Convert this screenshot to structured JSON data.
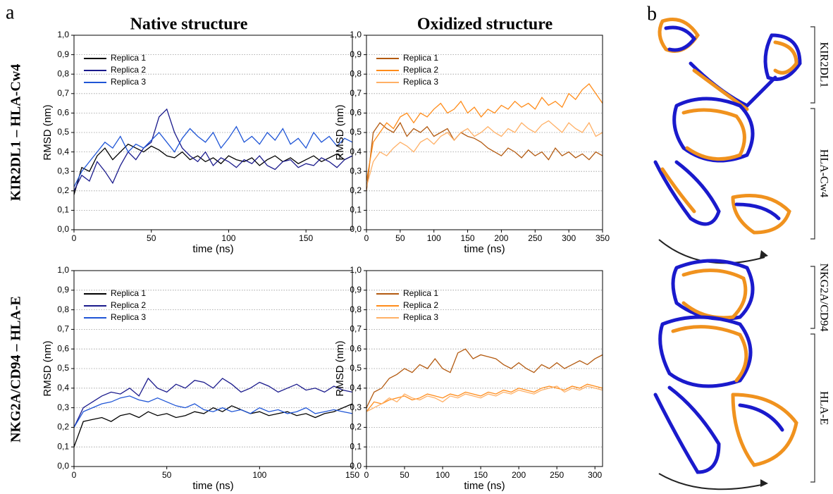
{
  "panel_labels": [
    "a",
    "b"
  ],
  "column_titles": [
    "Native structure",
    "Oxidized structure"
  ],
  "row_labels": [
    "KIR2DL1 – HLA-Cw4",
    "NKG2A/CD94 – HLA-E"
  ],
  "structure_labels": [
    "KIR2DL1",
    "HLA-Cw4",
    "NKG2A/CD94",
    "HLA-E"
  ],
  "chart_data": [
    {
      "type": "line",
      "xlabel": "time (ns)",
      "ylabel": "RMSD (nm)",
      "x": [
        0,
        5,
        10,
        15,
        20,
        25,
        30,
        35,
        40,
        45,
        50,
        55,
        60,
        65,
        70,
        75,
        80,
        85,
        90,
        95,
        100,
        105,
        110,
        115,
        120,
        125,
        130,
        135,
        140,
        145,
        150,
        155,
        160,
        165,
        170,
        175,
        180
      ],
      "series": [
        {
          "name": "Replica 1",
          "color": "#000000",
          "values": [
            0.18,
            0.32,
            0.3,
            0.38,
            0.42,
            0.36,
            0.4,
            0.44,
            0.42,
            0.4,
            0.43,
            0.41,
            0.38,
            0.37,
            0.4,
            0.36,
            0.38,
            0.35,
            0.37,
            0.34,
            0.38,
            0.36,
            0.35,
            0.37,
            0.33,
            0.36,
            0.38,
            0.35,
            0.37,
            0.34,
            0.36,
            0.38,
            0.35,
            0.37,
            0.39,
            0.36,
            0.38
          ]
        },
        {
          "name": "Replica 2",
          "color": "#1a1a8c",
          "values": [
            0.2,
            0.28,
            0.25,
            0.35,
            0.3,
            0.24,
            0.33,
            0.4,
            0.36,
            0.42,
            0.45,
            0.58,
            0.62,
            0.5,
            0.42,
            0.38,
            0.35,
            0.4,
            0.33,
            0.37,
            0.35,
            0.32,
            0.36,
            0.34,
            0.38,
            0.33,
            0.31,
            0.35,
            0.36,
            0.32,
            0.34,
            0.33,
            0.37,
            0.35,
            0.32,
            0.36,
            0.38
          ]
        },
        {
          "name": "Replica 3",
          "color": "#1f55d6",
          "values": [
            0.22,
            0.3,
            0.35,
            0.4,
            0.45,
            0.42,
            0.48,
            0.4,
            0.44,
            0.42,
            0.46,
            0.5,
            0.45,
            0.4,
            0.47,
            0.52,
            0.48,
            0.45,
            0.5,
            0.42,
            0.47,
            0.53,
            0.45,
            0.48,
            0.44,
            0.5,
            0.46,
            0.52,
            0.44,
            0.47,
            0.42,
            0.5,
            0.45,
            0.48,
            0.43,
            0.47,
            0.45
          ]
        }
      ],
      "xlim": [
        0,
        180
      ],
      "xticks": [
        0,
        50,
        100,
        150
      ],
      "ylim": [
        0,
        1
      ],
      "yticks": [
        {
          "value": 0,
          "label": "0,0"
        },
        {
          "value": 0.1,
          "label": "0,1"
        },
        {
          "value": 0.2,
          "label": "0,2"
        },
        {
          "value": 0.3,
          "label": "0,3"
        },
        {
          "value": 0.4,
          "label": "0,4"
        },
        {
          "value": 0.5,
          "label": "0,5"
        },
        {
          "value": 0.6,
          "label": "0,6"
        },
        {
          "value": 0.7,
          "label": "0,7"
        },
        {
          "value": 0.8,
          "label": "0,8"
        },
        {
          "value": 0.9,
          "label": "0,9"
        },
        {
          "value": 1,
          "label": "1,0"
        }
      ],
      "grid": true,
      "legend": "upper-left"
    },
    {
      "type": "line",
      "xlabel": "time (ns)",
      "ylabel": "RMSD (nm)",
      "x": [
        0,
        10,
        20,
        30,
        40,
        50,
        60,
        70,
        80,
        90,
        100,
        110,
        120,
        130,
        140,
        150,
        160,
        170,
        180,
        190,
        200,
        210,
        220,
        230,
        240,
        250,
        260,
        270,
        280,
        290,
        300,
        310,
        320,
        330,
        340,
        350
      ],
      "series": [
        {
          "name": "Replica 1",
          "color": "#b35a10",
          "values": [
            0.2,
            0.5,
            0.55,
            0.52,
            0.5,
            0.55,
            0.48,
            0.52,
            0.5,
            0.53,
            0.48,
            0.5,
            0.52,
            0.46,
            0.5,
            0.48,
            0.47,
            0.45,
            0.42,
            0.4,
            0.38,
            0.42,
            0.4,
            0.37,
            0.41,
            0.38,
            0.4,
            0.36,
            0.42,
            0.38,
            0.4,
            0.37,
            0.39,
            0.36,
            0.4,
            0.38
          ]
        },
        {
          "name": "Replica 2",
          "color": "#ff8c1a",
          "values": [
            0.25,
            0.45,
            0.5,
            0.55,
            0.52,
            0.58,
            0.6,
            0.55,
            0.6,
            0.58,
            0.62,
            0.65,
            0.6,
            0.62,
            0.66,
            0.6,
            0.63,
            0.58,
            0.62,
            0.6,
            0.64,
            0.62,
            0.66,
            0.63,
            0.65,
            0.62,
            0.68,
            0.64,
            0.66,
            0.63,
            0.7,
            0.67,
            0.72,
            0.75,
            0.7,
            0.65
          ]
        },
        {
          "name": "Replica 3",
          "color": "#ffb066",
          "values": [
            0.22,
            0.35,
            0.4,
            0.38,
            0.42,
            0.45,
            0.43,
            0.4,
            0.45,
            0.47,
            0.44,
            0.48,
            0.5,
            0.46,
            0.5,
            0.52,
            0.48,
            0.5,
            0.53,
            0.5,
            0.48,
            0.52,
            0.5,
            0.55,
            0.52,
            0.5,
            0.54,
            0.56,
            0.53,
            0.5,
            0.55,
            0.52,
            0.5,
            0.55,
            0.48,
            0.5
          ]
        }
      ],
      "xlim": [
        0,
        350
      ],
      "xticks": [
        0,
        50,
        100,
        150,
        200,
        250,
        300,
        350
      ],
      "ylim": [
        0,
        1
      ],
      "yticks": [
        {
          "value": 0,
          "label": "0,0"
        },
        {
          "value": 0.1,
          "label": "0,1"
        },
        {
          "value": 0.2,
          "label": "0,2"
        },
        {
          "value": 0.3,
          "label": "0,3"
        },
        {
          "value": 0.4,
          "label": "0,4"
        },
        {
          "value": 0.5,
          "label": "0,5"
        },
        {
          "value": 0.6,
          "label": "0,6"
        },
        {
          "value": 0.7,
          "label": "0,7"
        },
        {
          "value": 0.8,
          "label": "0,8"
        },
        {
          "value": 0.9,
          "label": "0,9"
        },
        {
          "value": 1,
          "label": "1,0"
        }
      ],
      "grid": true,
      "legend": "upper-left"
    },
    {
      "type": "line",
      "xlabel": "time (ns)",
      "ylabel": "RMSD (nm)",
      "x": [
        0,
        5,
        10,
        15,
        20,
        25,
        30,
        35,
        40,
        45,
        50,
        55,
        60,
        65,
        70,
        75,
        80,
        85,
        90,
        95,
        100,
        105,
        110,
        115,
        120,
        125,
        130,
        135,
        140,
        145,
        150
      ],
      "series": [
        {
          "name": "Replica 1",
          "color": "#000000",
          "values": [
            0.1,
            0.23,
            0.24,
            0.25,
            0.23,
            0.26,
            0.27,
            0.25,
            0.28,
            0.26,
            0.27,
            0.25,
            0.26,
            0.28,
            0.27,
            0.3,
            0.28,
            0.31,
            0.29,
            0.27,
            0.28,
            0.26,
            0.27,
            0.28,
            0.26,
            0.27,
            0.25,
            0.27,
            0.28,
            0.3,
            0.32
          ]
        },
        {
          "name": "Replica 2",
          "color": "#1a1a8c",
          "values": [
            0.2,
            0.3,
            0.33,
            0.36,
            0.38,
            0.37,
            0.4,
            0.36,
            0.45,
            0.4,
            0.38,
            0.42,
            0.4,
            0.44,
            0.43,
            0.4,
            0.45,
            0.42,
            0.38,
            0.4,
            0.43,
            0.41,
            0.38,
            0.4,
            0.42,
            0.39,
            0.4,
            0.38,
            0.41,
            0.39,
            0.38
          ]
        },
        {
          "name": "Replica 3",
          "color": "#1f55d6",
          "values": [
            0.2,
            0.28,
            0.3,
            0.32,
            0.33,
            0.35,
            0.36,
            0.34,
            0.33,
            0.35,
            0.33,
            0.31,
            0.3,
            0.32,
            0.29,
            0.28,
            0.3,
            0.28,
            0.29,
            0.27,
            0.3,
            0.28,
            0.29,
            0.27,
            0.28,
            0.3,
            0.27,
            0.28,
            0.29,
            0.28,
            0.27
          ]
        }
      ],
      "xlim": [
        0,
        150
      ],
      "xticks": [
        0,
        50,
        100,
        150
      ],
      "ylim": [
        0,
        1
      ],
      "yticks": [
        {
          "value": 0,
          "label": "0,0"
        },
        {
          "value": 0.1,
          "label": "0,1"
        },
        {
          "value": 0.2,
          "label": "0,2"
        },
        {
          "value": 0.3,
          "label": "0,3"
        },
        {
          "value": 0.4,
          "label": "0,4"
        },
        {
          "value": 0.5,
          "label": "0,5"
        },
        {
          "value": 0.6,
          "label": "0,6"
        },
        {
          "value": 0.7,
          "label": "0,7"
        },
        {
          "value": 0.8,
          "label": "0,8"
        },
        {
          "value": 0.9,
          "label": "0,9"
        },
        {
          "value": 1,
          "label": "1,0"
        }
      ],
      "grid": true,
      "legend": "upper-left"
    },
    {
      "type": "line",
      "xlabel": "time (ns)",
      "ylabel": "RMSD (nm)",
      "x": [
        0,
        10,
        20,
        30,
        40,
        50,
        60,
        70,
        80,
        90,
        100,
        110,
        120,
        130,
        140,
        150,
        160,
        170,
        180,
        190,
        200,
        210,
        220,
        230,
        240,
        250,
        260,
        270,
        280,
        290,
        300,
        310
      ],
      "series": [
        {
          "name": "Replica 1",
          "color": "#b35a10",
          "values": [
            0.3,
            0.38,
            0.4,
            0.45,
            0.47,
            0.5,
            0.48,
            0.52,
            0.5,
            0.55,
            0.5,
            0.48,
            0.58,
            0.6,
            0.55,
            0.57,
            0.56,
            0.55,
            0.52,
            0.5,
            0.53,
            0.5,
            0.48,
            0.52,
            0.5,
            0.53,
            0.5,
            0.52,
            0.54,
            0.52,
            0.55,
            0.57
          ]
        },
        {
          "name": "Replica 2",
          "color": "#ff8c1a",
          "values": [
            0.28,
            0.33,
            0.32,
            0.34,
            0.35,
            0.36,
            0.34,
            0.35,
            0.37,
            0.36,
            0.35,
            0.37,
            0.36,
            0.38,
            0.37,
            0.36,
            0.38,
            0.37,
            0.39,
            0.38,
            0.4,
            0.39,
            0.38,
            0.4,
            0.41,
            0.4,
            0.39,
            0.41,
            0.4,
            0.42,
            0.41,
            0.4
          ]
        },
        {
          "name": "Replica 3",
          "color": "#ffb066",
          "values": [
            0.28,
            0.3,
            0.32,
            0.35,
            0.33,
            0.37,
            0.35,
            0.34,
            0.36,
            0.35,
            0.33,
            0.36,
            0.35,
            0.37,
            0.36,
            0.35,
            0.37,
            0.36,
            0.38,
            0.37,
            0.39,
            0.38,
            0.37,
            0.39,
            0.4,
            0.41,
            0.38,
            0.4,
            0.39,
            0.41,
            0.4,
            0.39
          ]
        }
      ],
      "xlim": [
        0,
        310
      ],
      "xticks": [
        0,
        50,
        100,
        150,
        200,
        250,
        300
      ],
      "ylim": [
        0,
        1
      ],
      "yticks": [
        {
          "value": 0,
          "label": "0,0"
        },
        {
          "value": 0.1,
          "label": "0,1"
        },
        {
          "value": 0.2,
          "label": "0,2"
        },
        {
          "value": 0.3,
          "label": "0,3"
        },
        {
          "value": 0.4,
          "label": "0,4"
        },
        {
          "value": 0.5,
          "label": "0,5"
        },
        {
          "value": 0.6,
          "label": "0,6"
        },
        {
          "value": 0.7,
          "label": "0,7"
        },
        {
          "value": 0.8,
          "label": "0,8"
        },
        {
          "value": 0.9,
          "label": "0,9"
        },
        {
          "value": 1,
          "label": "1,0"
        }
      ],
      "grid": true,
      "legend": "upper-left"
    }
  ]
}
